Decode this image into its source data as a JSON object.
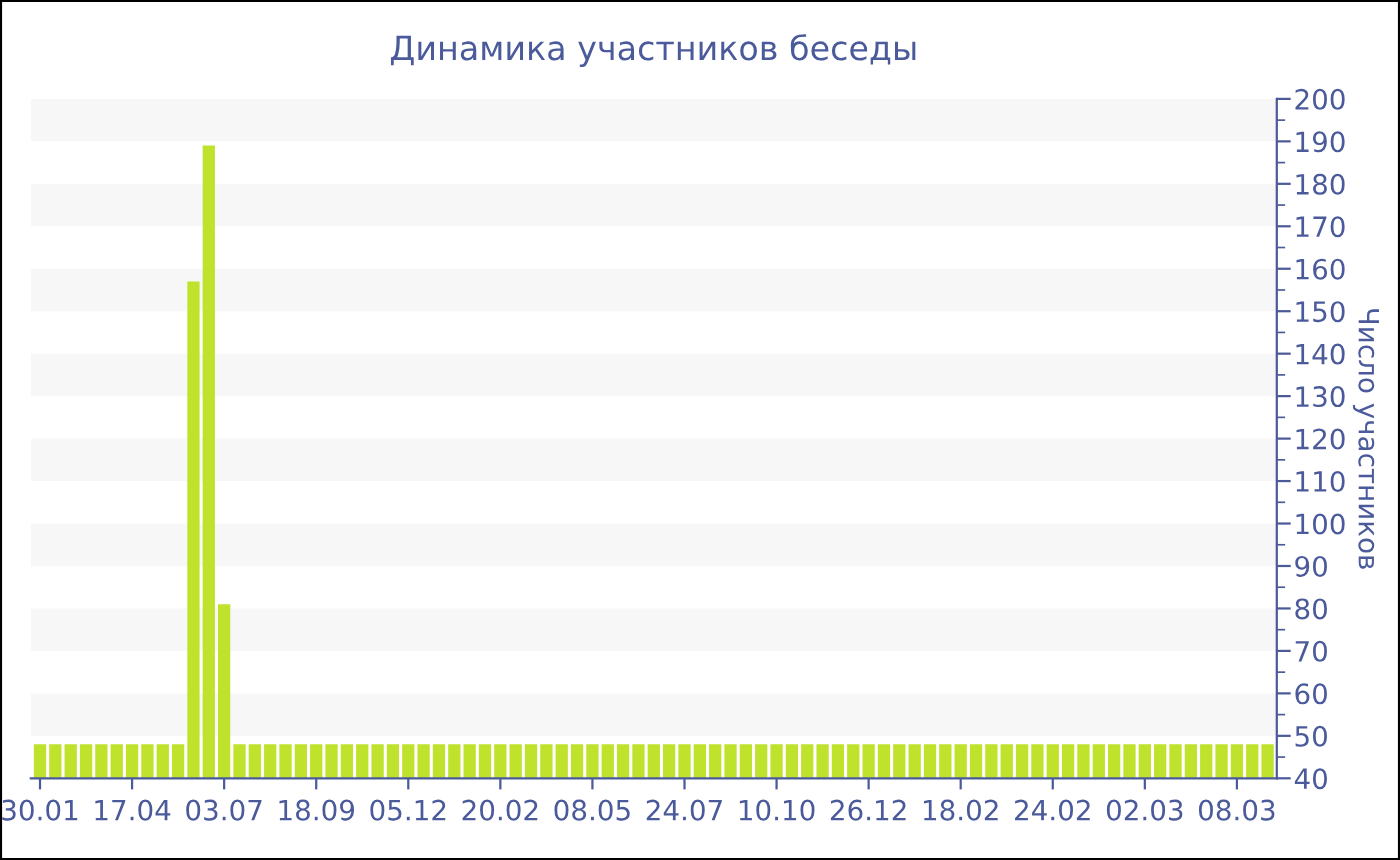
{
  "chart_data": {
    "type": "bar",
    "title": "Динамика участников беседы",
    "ylabel": "Число участников",
    "categories": [
      "30.01",
      null,
      null,
      null,
      null,
      null,
      "17.04",
      null,
      null,
      null,
      null,
      null,
      "03.07",
      null,
      null,
      null,
      null,
      null,
      "18.09",
      null,
      null,
      null,
      null,
      null,
      "05.12",
      null,
      null,
      null,
      null,
      null,
      "20.02",
      null,
      null,
      null,
      null,
      null,
      "08.05",
      null,
      null,
      null,
      null,
      null,
      "24.07",
      null,
      null,
      null,
      null,
      null,
      "10.10",
      null,
      null,
      null,
      null,
      null,
      "26.12",
      null,
      null,
      null,
      null,
      null,
      "18.02",
      null,
      null,
      null,
      null,
      null,
      "24.02",
      null,
      null,
      null,
      null,
      null,
      "02.03",
      null,
      null,
      null,
      null,
      null,
      "08.03",
      null,
      null
    ],
    "values": [
      48,
      48,
      48,
      48,
      48,
      48,
      48,
      48,
      48,
      48,
      157,
      189,
      81,
      48,
      48,
      48,
      48,
      48,
      48,
      48,
      48,
      48,
      48,
      48,
      48,
      48,
      48,
      48,
      48,
      48,
      48,
      48,
      48,
      48,
      48,
      48,
      48,
      48,
      48,
      48,
      48,
      48,
      48,
      48,
      48,
      48,
      48,
      48,
      48,
      48,
      48,
      48,
      48,
      48,
      48,
      48,
      48,
      48,
      48,
      48,
      48,
      48,
      48,
      48,
      48,
      48,
      48,
      48,
      48,
      48,
      48,
      48,
      48,
      48,
      48,
      48,
      48,
      48,
      48,
      48,
      48
    ],
    "color": "#bfe22d",
    "ylim": [
      40,
      200
    ],
    "yticks": [
      40,
      50,
      60,
      70,
      80,
      90,
      100,
      110,
      120,
      130,
      140,
      150,
      160,
      170,
      180,
      190,
      200
    ],
    "bands": [
      {
        "axis": "y",
        "from": 50,
        "to": 60,
        "color": "#f7f7f7"
      },
      {
        "axis": "y",
        "from": 70,
        "to": 80,
        "color": "#f7f7f7"
      },
      {
        "axis": "y",
        "from": 90,
        "to": 100,
        "color": "#f7f7f7"
      },
      {
        "axis": "y",
        "from": 110,
        "to": 120,
        "color": "#f7f7f7"
      },
      {
        "axis": "y",
        "from": 130,
        "to": 140,
        "color": "#f7f7f7"
      },
      {
        "axis": "y",
        "from": 150,
        "to": 160,
        "color": "#f7f7f7"
      },
      {
        "axis": "y",
        "from": 170,
        "to": 180,
        "color": "#f7f7f7"
      },
      {
        "axis": "y",
        "from": 190,
        "to": 200,
        "color": "#f7f7f7"
      }
    ],
    "grid": false,
    "legend": false
  }
}
